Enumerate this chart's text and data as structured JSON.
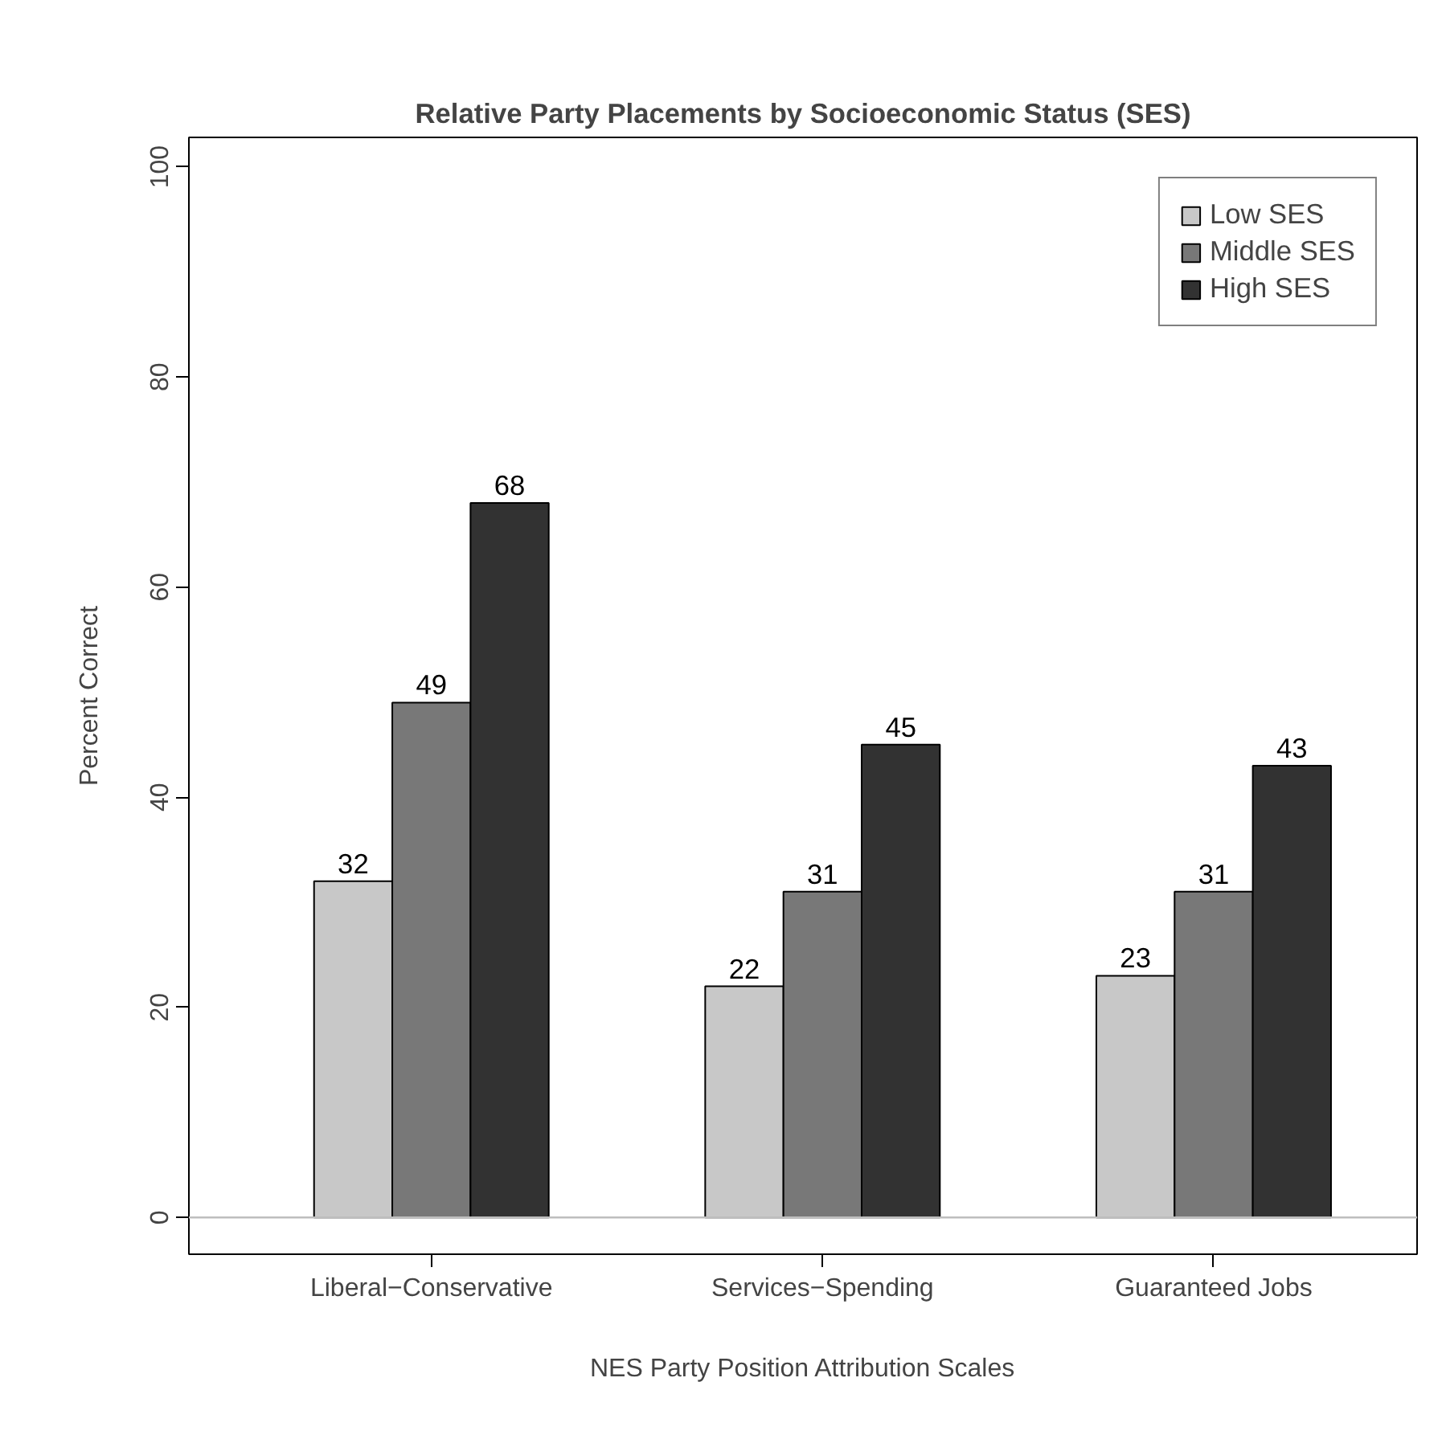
{
  "chart_data": {
    "type": "bar",
    "title": "Relative Party Placements by Socioeconomic Status (SES)",
    "xlabel": "NES Party Position Attribution Scales",
    "ylabel": "Percent Correct",
    "categories": [
      "Liberal−Conservative",
      "Services−Spending",
      "Guaranteed Jobs"
    ],
    "series": [
      {
        "name": "Low SES",
        "color": "#c8c8c8",
        "values": [
          32,
          22,
          23
        ]
      },
      {
        "name": "Middle SES",
        "color": "#787878",
        "values": [
          49,
          31,
          31
        ]
      },
      {
        "name": "High SES",
        "color": "#323232",
        "values": [
          68,
          45,
          43
        ]
      }
    ],
    "ylim": [
      -3.5,
      102.8
    ],
    "yticks": [
      0,
      20,
      40,
      60,
      80,
      100
    ],
    "ref_lines": [
      {
        "axis": "y",
        "value": 0,
        "color": "#bebebe"
      }
    ],
    "data_labels": true,
    "grid": false,
    "legend": "top right"
  }
}
